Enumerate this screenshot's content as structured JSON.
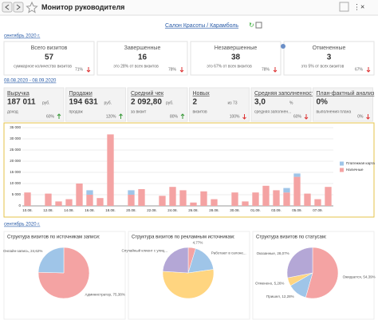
{
  "header": {
    "title": "Монитор руководителя"
  },
  "salon_link": "Салон Красоты / Карамболь",
  "period_1": "сентябрь 2020 г.",
  "visit_cards": [
    {
      "title": "Всего визитов",
      "value": "57",
      "caption": "суммарное количество визитов",
      "percent": "71%",
      "trend": "down"
    },
    {
      "title": "Завершенные",
      "value": "16",
      "caption": "это 28% от всех визитов",
      "percent": "78%",
      "trend": "down"
    },
    {
      "title": "Незавершенные",
      "value": "38",
      "caption": "это 67% от всех визитов",
      "percent": "78%",
      "trend": "down"
    },
    {
      "title": "Отмененные",
      "value": "3",
      "caption": "это 5% от всех визитов",
      "percent": "67%",
      "trend": "down"
    }
  ],
  "period_2": "08.08.2020 - 08.09.2020",
  "finance_cards": [
    {
      "title": "Выручка",
      "value": "187 011",
      "unit": "руб.",
      "caption": "доход",
      "percent": "60%",
      "trend": "up"
    },
    {
      "title": "Продажи",
      "value": "194 631",
      "unit": "руб.",
      "caption": "продаж",
      "percent": "120%",
      "trend": "up"
    },
    {
      "title": "Средний чек",
      "value": "2 092,80",
      "unit": "руб.",
      "caption": "за визит",
      "percent": "80%",
      "trend": "up"
    },
    {
      "title": "Новых",
      "value": "2",
      "unit": "из 73",
      "caption": "визитов",
      "percent": "100%",
      "trend": "down"
    },
    {
      "title": "Средняя заполненность",
      "value": "3,0",
      "unit": "%",
      "caption": "средняя заполнен...",
      "percent": "60%",
      "trend": "down"
    },
    {
      "title": "План-фактный анализ",
      "value": "0%",
      "caption": "выполнения плана",
      "percent": "0%",
      "trend": "down"
    }
  ],
  "revenue_chart": {
    "type": "bar",
    "stacked": true,
    "categories": [
      "10.08.",
      null,
      "12.08.",
      null,
      "14.08.",
      null,
      "16.08.",
      null,
      "18.08.",
      null,
      "20.08.",
      null,
      "22.08.",
      null,
      "24.08.",
      null,
      "26.08.",
      null,
      "28.08.",
      null,
      "30.08.",
      null,
      "01.09.",
      null,
      "03.09.",
      null,
      "05.09.",
      null,
      "07.09.",
      null
    ],
    "series": [
      {
        "name": "Наличные",
        "color": "#f4a3a3",
        "values": [
          6000,
          0,
          5500,
          2000,
          3000,
          10000,
          5000,
          3500,
          32000,
          0,
          5000,
          7500,
          0,
          4500,
          8500,
          7000,
          1500,
          6500,
          3000,
          0,
          6000,
          2000,
          6000,
          9000,
          7000,
          6000,
          13000,
          5500,
          3000,
          8500
        ]
      },
      {
        "name": "Платежная карта",
        "color": "#9fc5e8",
        "values": [
          0,
          0,
          0,
          0,
          0,
          0,
          2000,
          0,
          0,
          0,
          2000,
          0,
          0,
          0,
          0,
          0,
          0,
          0,
          0,
          0,
          0,
          0,
          0,
          0,
          0,
          2000,
          1500,
          0,
          0,
          0
        ]
      }
    ],
    "ylim": [
      0,
      35000
    ],
    "yticks": [
      0,
      {
        "value": 5000,
        "label": "5 000"
      },
      {
        "value": 10000,
        "label": "10 000"
      },
      {
        "value": 15000,
        "label": "15 000"
      },
      {
        "value": 20000,
        "label": "20 000"
      },
      {
        "value": 25000,
        "label": "25 000"
      },
      {
        "value": 30000,
        "label": "30 000"
      },
      {
        "value": 35000,
        "label": "35 000"
      }
    ]
  },
  "period_3": "сентябрь 2020 г.",
  "pies": [
    {
      "type": "pie",
      "title": "Структура визитов по источникам записи:",
      "slices": [
        {
          "label": "Администратор, 75,38%",
          "value": 75.38,
          "color": "#f4a3a3"
        },
        {
          "label": "Онлайн-запись, 24,62%",
          "value": 24.62,
          "color": "#9fc5e8"
        }
      ]
    },
    {
      "type": "pie",
      "title": "Структура визитов по рекламным источникам:",
      "slices": [
        {
          "label": "4,77%",
          "value": 4.77,
          "color": "#f4a3a3"
        },
        {
          "label": "Работают в салоне...",
          "value": 18,
          "color": "#9fc5e8"
        },
        {
          "value": 53.23,
          "color": "#ffd580"
        },
        {
          "label": "Случайный клиент с улиц...",
          "value": 24,
          "color": "#b4a7d6"
        }
      ]
    },
    {
      "type": "pie",
      "title": "Структура визитов по статусам:",
      "slices": [
        {
          "label": "Ожидается, 54,39%",
          "value": 54.39,
          "color": "#f4a3a3"
        },
        {
          "label": "Пришел, 12,28%",
          "value": 12.28,
          "color": "#9fc5e8"
        },
        {
          "label": "Отменено, 5,26%",
          "value": 5.26,
          "color": "#ffd580"
        },
        {
          "label": "Оказанные, 28,07%",
          "value": 28.07,
          "color": "#b4a7d6"
        }
      ]
    }
  ]
}
